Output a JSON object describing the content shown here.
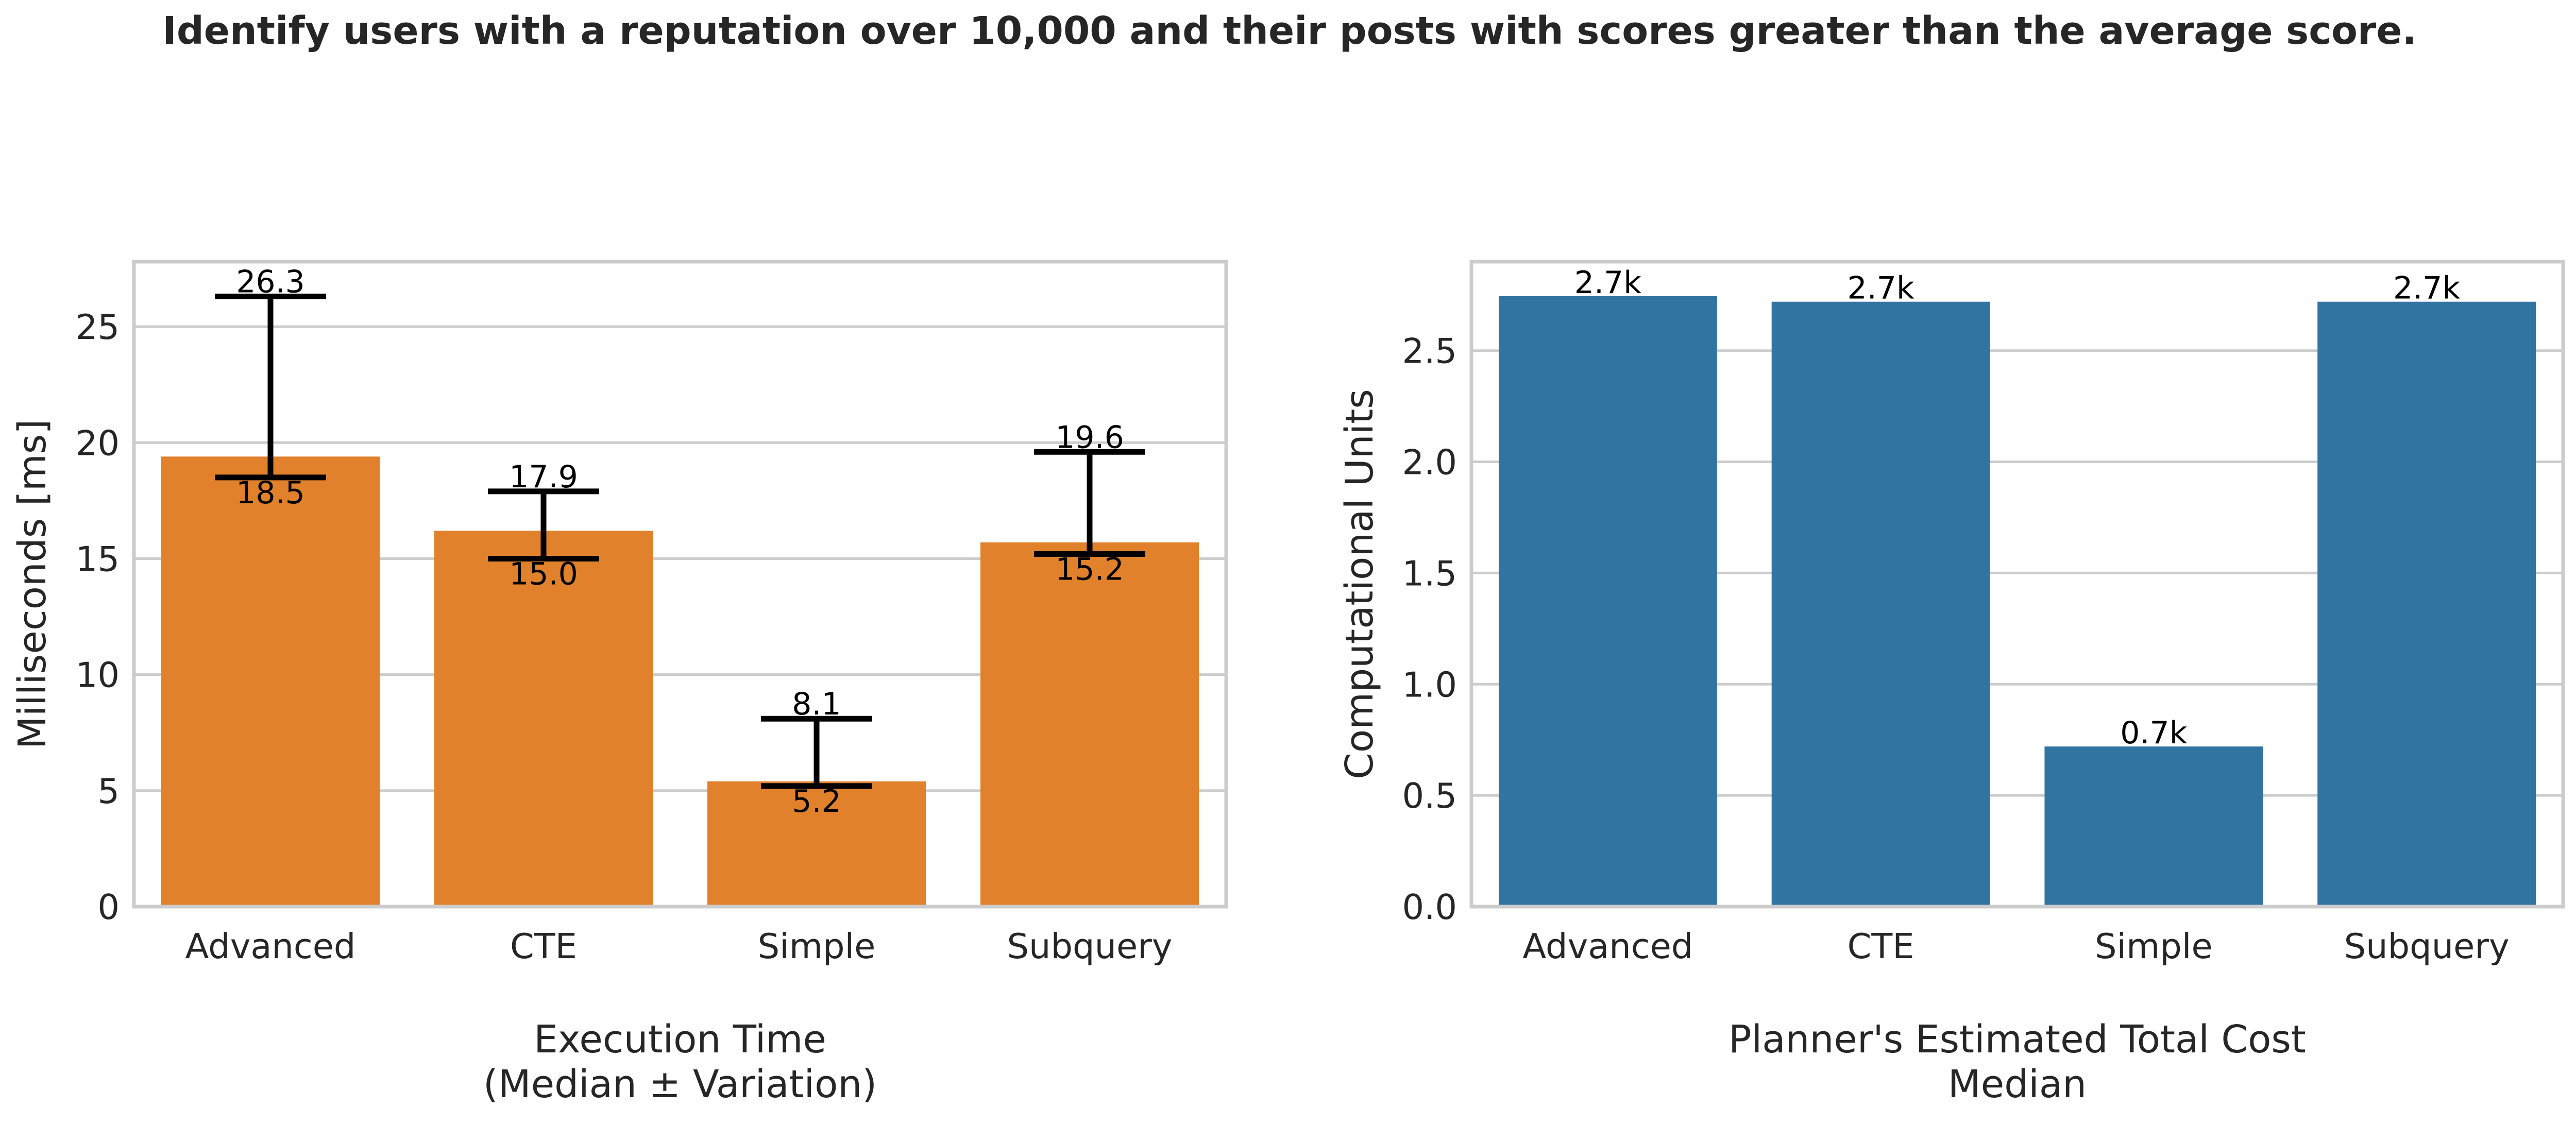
{
  "title": "Identify users with a reputation over 10,000 and their posts with scores greater than the average score.",
  "colors": {
    "exec_bar": "#e1812c",
    "cost_bar": "#3274a1",
    "grid": "#cccccc",
    "errorbar": "#000000"
  },
  "chart_data": [
    {
      "type": "bar",
      "categories": [
        "Advanced",
        "CTE",
        "Simple",
        "Subquery"
      ],
      "values": [
        19.4,
        16.2,
        5.4,
        15.7
      ],
      "error_low": [
        18.5,
        15.0,
        5.2,
        15.2
      ],
      "error_high": [
        26.3,
        17.9,
        8.1,
        19.6
      ],
      "low_labels": [
        "18.5",
        "15.0",
        "5.2",
        "15.2"
      ],
      "high_labels": [
        "26.3",
        "17.9",
        "8.1",
        "19.6"
      ],
      "xlabel_line1": "Execution Time",
      "xlabel_line2": "(Median ± Variation)",
      "ylabel": "Milliseconds [ms]",
      "ylim": [
        0,
        27.8
      ],
      "yticks": [
        0,
        5,
        10,
        15,
        20,
        25
      ],
      "ytick_labels": [
        "0",
        "5",
        "10",
        "15",
        "20",
        "25"
      ],
      "grid": true
    },
    {
      "type": "bar",
      "categories": [
        "Advanced",
        "CTE",
        "Simple",
        "Subquery"
      ],
      "values": [
        2.745,
        2.72,
        0.72,
        2.72
      ],
      "value_labels": [
        "2.7k",
        "2.7k",
        "0.7k",
        "2.7k"
      ],
      "xlabel_line1": "Planner's Estimated Total Cost",
      "xlabel_line2": "Median",
      "ylabel": "Computational Units",
      "ylim": [
        0,
        2.9
      ],
      "yticks": [
        0,
        0.5,
        1.0,
        1.5,
        2.0,
        2.5
      ],
      "ytick_labels": [
        "0.0",
        "0.5",
        "1.0",
        "1.5",
        "2.0",
        "2.5"
      ],
      "grid": true
    }
  ]
}
